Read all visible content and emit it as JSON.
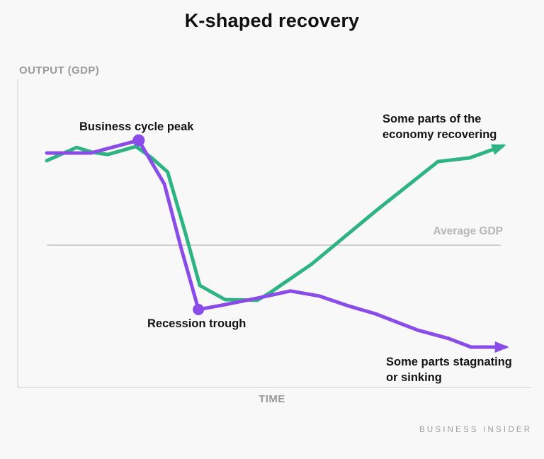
{
  "title": "K-shaped recovery",
  "brand": "BUSINESS INSIDER",
  "axes": {
    "y_label": "OUTPUT (GDP)",
    "x_label": "TIME"
  },
  "annotations": {
    "peak": "Business cycle peak",
    "trough": "Recession trough",
    "recovering": "Some parts of the\neconomy recovering",
    "sinking": "Some parts stagnating\nor sinking",
    "average": "Average GDP"
  },
  "colors": {
    "green_series": "#2db482",
    "purple_series": "#8a4ce8",
    "axis_line": "#e3e3e3",
    "reference_line": "#c7c7c7",
    "title_text": "#101010",
    "annotation_text": "#141414",
    "axis_label_text": "#9a9a9a",
    "average_label_text": "#b7b7b7",
    "brand_text": "#9e9e9e",
    "background": "#f8f8f8"
  },
  "chart_data": {
    "type": "line",
    "title": "K-shaped recovery",
    "xlabel": "TIME",
    "ylabel": "OUTPUT (GDP)",
    "x_range": [
      0,
      100
    ],
    "y_range": [
      0,
      100
    ],
    "axes_numeric": false,
    "grid": false,
    "legend": "none",
    "series": [
      {
        "name": "recovering-economy",
        "label": "Some parts of the economy recovering",
        "color": "#2db482",
        "stroke_width": 5,
        "arrow_end": true,
        "points": [
          [
            0,
            73.6
          ],
          [
            6.5,
            77.9
          ],
          [
            10,
            76.3
          ],
          [
            13.3,
            75.6
          ],
          [
            19.4,
            78.2
          ],
          [
            22.7,
            74.7
          ],
          [
            26.3,
            69.9
          ],
          [
            30.2,
            49.9
          ],
          [
            33.3,
            33.1
          ],
          [
            38.8,
            28.5
          ],
          [
            45.8,
            28.3
          ],
          [
            48.4,
            30.6
          ],
          [
            57.6,
            40.0
          ],
          [
            71.5,
            57.2
          ],
          [
            85.1,
            73.3
          ],
          [
            92.0,
            74.5
          ],
          [
            99.2,
            78.4
          ]
        ]
      },
      {
        "name": "stagnating-economy",
        "label": "Some parts stagnating or sinking",
        "color": "#8a4ce8",
        "stroke_width": 5,
        "arrow_end": true,
        "points": [
          [
            0,
            76.1
          ],
          [
            9.6,
            76.1
          ],
          [
            20,
            80.2
          ],
          [
            25.6,
            66.0
          ],
          [
            29.3,
            44.8
          ],
          [
            33,
            25.3
          ],
          [
            38.1,
            26.7
          ],
          [
            45.8,
            29.0
          ],
          [
            53,
            31.3
          ],
          [
            59.2,
            29.7
          ],
          [
            65.8,
            26.4
          ],
          [
            71.5,
            23.9
          ],
          [
            80.7,
            18.6
          ],
          [
            87.4,
            15.9
          ],
          [
            92.3,
            13.1
          ],
          [
            99.8,
            13.1
          ]
        ],
        "markers": [
          {
            "name": "business-cycle-peak",
            "point": [
              20,
              80.2
            ],
            "radius": 8.5
          },
          {
            "name": "recession-trough",
            "point": [
              33,
              25.3
            ],
            "radius": 8
          }
        ]
      }
    ],
    "reference_line": {
      "label": "Average GDP",
      "y": 46.2,
      "x_start": 0,
      "x_end": 98.8
    }
  }
}
